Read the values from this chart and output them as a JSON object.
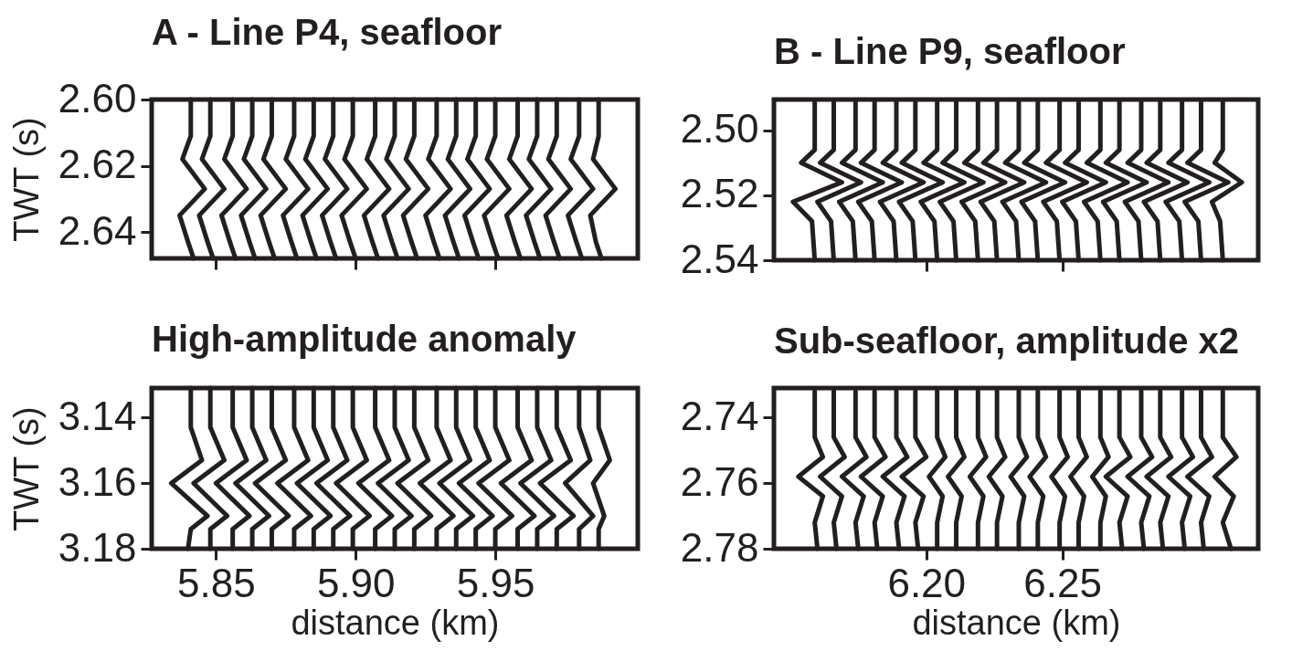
{
  "chart_data": [
    {
      "type": "line",
      "title": "A - Line P4, seafloor",
      "ylabel": "TWT (s)",
      "xlim": [
        5.827,
        6.001
      ],
      "xticks": [
        5.85,
        5.9,
        5.95
      ],
      "ylim": [
        2.648,
        2.6
      ],
      "yticks": [
        {
          "value": 2.6,
          "label": "2.60"
        },
        2.62,
        2.64
      ],
      "tick_labels": "y",
      "series": [
        {
          "color": "#231f20",
          "x": [
            5.841,
            5.841,
            5.838,
            5.846,
            5.837,
            5.84,
            5.842
          ],
          "values": [
            2.6,
            2.611,
            2.618,
            2.627,
            2.635,
            2.643,
            2.648
          ]
        },
        {
          "color": "#231f20",
          "x": [
            5.848,
            5.848,
            5.845,
            5.853,
            5.844,
            5.847,
            5.849
          ],
          "values": [
            2.6,
            2.611,
            2.618,
            2.627,
            2.635,
            2.643,
            2.648
          ]
        },
        {
          "color": "#231f20",
          "x": [
            5.856,
            5.856,
            5.853,
            5.861,
            5.852,
            5.855,
            5.857
          ],
          "values": [
            2.6,
            2.611,
            2.618,
            2.627,
            2.635,
            2.643,
            2.648
          ]
        },
        {
          "color": "#231f20",
          "x": [
            5.863,
            5.863,
            5.86,
            5.868,
            5.859,
            5.862,
            5.864
          ],
          "values": [
            2.6,
            2.611,
            2.618,
            2.627,
            2.635,
            2.643,
            2.648
          ]
        },
        {
          "color": "#231f20",
          "x": [
            5.87,
            5.87,
            5.867,
            5.875,
            5.866,
            5.869,
            5.871
          ],
          "values": [
            2.6,
            2.611,
            2.618,
            2.627,
            2.635,
            2.643,
            2.648
          ]
        },
        {
          "color": "#231f20",
          "x": [
            5.878,
            5.878,
            5.875,
            5.883,
            5.874,
            5.877,
            5.879
          ],
          "values": [
            2.6,
            2.611,
            2.618,
            2.627,
            2.635,
            2.643,
            2.648
          ]
        },
        {
          "color": "#231f20",
          "x": [
            5.885,
            5.885,
            5.882,
            5.89,
            5.881,
            5.884,
            5.886
          ],
          "values": [
            2.6,
            2.611,
            2.618,
            2.627,
            2.635,
            2.643,
            2.648
          ]
        },
        {
          "color": "#231f20",
          "x": [
            5.892,
            5.892,
            5.889,
            5.897,
            5.888,
            5.891,
            5.893
          ],
          "values": [
            2.6,
            2.611,
            2.618,
            2.627,
            2.635,
            2.643,
            2.648
          ]
        },
        {
          "color": "#231f20",
          "x": [
            5.899,
            5.899,
            5.896,
            5.904,
            5.895,
            5.898,
            5.9
          ],
          "values": [
            2.6,
            2.611,
            2.618,
            2.627,
            2.635,
            2.643,
            2.648
          ]
        },
        {
          "color": "#231f20",
          "x": [
            5.907,
            5.907,
            5.904,
            5.912,
            5.903,
            5.906,
            5.908
          ],
          "values": [
            2.6,
            2.611,
            2.618,
            2.627,
            2.635,
            2.643,
            2.648
          ]
        },
        {
          "color": "#231f20",
          "x": [
            5.914,
            5.914,
            5.911,
            5.919,
            5.91,
            5.913,
            5.915
          ],
          "values": [
            2.6,
            2.611,
            2.618,
            2.627,
            2.635,
            2.643,
            2.648
          ]
        },
        {
          "color": "#231f20",
          "x": [
            5.921,
            5.921,
            5.918,
            5.926,
            5.917,
            5.92,
            5.922
          ],
          "values": [
            2.6,
            2.611,
            2.618,
            2.627,
            2.635,
            2.643,
            2.648
          ]
        },
        {
          "color": "#231f20",
          "x": [
            5.929,
            5.929,
            5.926,
            5.934,
            5.925,
            5.928,
            5.93
          ],
          "values": [
            2.6,
            2.611,
            2.618,
            2.627,
            2.635,
            2.643,
            2.648
          ]
        },
        {
          "color": "#231f20",
          "x": [
            5.936,
            5.936,
            5.933,
            5.941,
            5.932,
            5.935,
            5.937
          ],
          "values": [
            2.6,
            2.611,
            2.618,
            2.627,
            2.635,
            2.643,
            2.648
          ]
        },
        {
          "color": "#231f20",
          "x": [
            5.943,
            5.943,
            5.94,
            5.948,
            5.939,
            5.942,
            5.944
          ],
          "values": [
            2.6,
            2.611,
            2.618,
            2.627,
            2.635,
            2.643,
            2.648
          ]
        },
        {
          "color": "#231f20",
          "x": [
            5.95,
            5.95,
            5.947,
            5.955,
            5.946,
            5.949,
            5.951
          ],
          "values": [
            2.6,
            2.611,
            2.618,
            2.627,
            2.635,
            2.643,
            2.648
          ]
        },
        {
          "color": "#231f20",
          "x": [
            5.958,
            5.958,
            5.955,
            5.963,
            5.954,
            5.957,
            5.959
          ],
          "values": [
            2.6,
            2.611,
            2.618,
            2.627,
            2.635,
            2.643,
            2.648
          ]
        },
        {
          "color": "#231f20",
          "x": [
            5.965,
            5.965,
            5.962,
            5.97,
            5.961,
            5.964,
            5.966
          ],
          "values": [
            2.6,
            2.611,
            2.618,
            2.627,
            2.635,
            2.643,
            2.648
          ]
        },
        {
          "color": "#231f20",
          "x": [
            5.972,
            5.972,
            5.969,
            5.977,
            5.968,
            5.971,
            5.973
          ],
          "values": [
            2.6,
            2.611,
            2.618,
            2.627,
            2.635,
            2.643,
            2.648
          ]
        },
        {
          "color": "#231f20",
          "x": [
            5.98,
            5.98,
            5.977,
            5.985,
            5.976,
            5.979,
            5.981
          ],
          "values": [
            2.6,
            2.611,
            2.618,
            2.627,
            2.635,
            2.643,
            2.648
          ]
        },
        {
          "color": "#231f20",
          "x": [
            5.987,
            5.987,
            5.985,
            5.993,
            5.984,
            5.986,
            5.988
          ],
          "values": [
            2.6,
            2.611,
            2.618,
            2.627,
            2.635,
            2.643,
            2.648
          ]
        }
      ]
    },
    {
      "type": "line",
      "title": "B - Line P9, seafloor",
      "xlim": [
        6.144,
        6.322
      ],
      "xticks": [
        6.2,
        6.25
      ],
      "ylim": [
        2.54,
        2.4905
      ],
      "yticks": [
        {
          "value": 2.5,
          "label": "2.50"
        },
        2.52,
        2.54
      ],
      "tick_labels": "y",
      "series": [
        {
          "color": "#231f20",
          "x": [
            6.159,
            6.159,
            6.154,
            6.169,
            6.151,
            6.158,
            6.159
          ],
          "values": [
            2.491,
            2.506,
            2.51,
            2.516,
            2.522,
            2.528,
            2.54
          ]
        },
        {
          "color": "#231f20",
          "x": [
            6.166,
            6.166,
            6.161,
            6.176,
            6.16,
            6.165,
            6.166
          ],
          "values": [
            2.491,
            2.506,
            2.51,
            2.516,
            2.522,
            2.528,
            2.54
          ]
        },
        {
          "color": "#231f20",
          "x": [
            6.174,
            6.174,
            6.169,
            6.184,
            6.168,
            6.173,
            6.174
          ],
          "values": [
            2.491,
            2.506,
            2.51,
            2.516,
            2.522,
            2.528,
            2.54
          ]
        },
        {
          "color": "#231f20",
          "x": [
            6.181,
            6.181,
            6.176,
            6.191,
            6.175,
            6.18,
            6.181
          ],
          "values": [
            2.491,
            2.506,
            2.51,
            2.516,
            2.522,
            2.528,
            2.54
          ]
        },
        {
          "color": "#231f20",
          "x": [
            6.189,
            6.189,
            6.184,
            6.199,
            6.183,
            6.188,
            6.189
          ],
          "values": [
            2.491,
            2.506,
            2.51,
            2.516,
            2.522,
            2.528,
            2.54
          ]
        },
        {
          "color": "#231f20",
          "x": [
            6.196,
            6.196,
            6.191,
            6.206,
            6.19,
            6.195,
            6.196
          ],
          "values": [
            2.491,
            2.506,
            2.51,
            2.516,
            2.522,
            2.528,
            2.54
          ]
        },
        {
          "color": "#231f20",
          "x": [
            6.204,
            6.204,
            6.199,
            6.214,
            6.198,
            6.203,
            6.204
          ],
          "values": [
            2.491,
            2.506,
            2.51,
            2.516,
            2.522,
            2.528,
            2.54
          ]
        },
        {
          "color": "#231f20",
          "x": [
            6.211,
            6.211,
            6.206,
            6.221,
            6.205,
            6.21,
            6.211
          ],
          "values": [
            2.491,
            2.506,
            2.51,
            2.516,
            2.522,
            2.528,
            2.54
          ]
        },
        {
          "color": "#231f20",
          "x": [
            6.219,
            6.219,
            6.214,
            6.229,
            6.213,
            6.218,
            6.219
          ],
          "values": [
            2.491,
            2.506,
            2.51,
            2.516,
            2.522,
            2.528,
            2.54
          ]
        },
        {
          "color": "#231f20",
          "x": [
            6.226,
            6.226,
            6.221,
            6.236,
            6.22,
            6.225,
            6.226
          ],
          "values": [
            2.491,
            2.506,
            2.51,
            2.516,
            2.522,
            2.528,
            2.54
          ]
        },
        {
          "color": "#231f20",
          "x": [
            6.234,
            6.234,
            6.229,
            6.244,
            6.228,
            6.233,
            6.234
          ],
          "values": [
            2.491,
            2.506,
            2.51,
            2.516,
            2.522,
            2.528,
            2.54
          ]
        },
        {
          "color": "#231f20",
          "x": [
            6.241,
            6.241,
            6.236,
            6.251,
            6.235,
            6.24,
            6.241
          ],
          "values": [
            2.491,
            2.506,
            2.51,
            2.516,
            2.522,
            2.528,
            2.54
          ]
        },
        {
          "color": "#231f20",
          "x": [
            6.249,
            6.249,
            6.244,
            6.259,
            6.243,
            6.248,
            6.249
          ],
          "values": [
            2.491,
            2.506,
            2.51,
            2.516,
            2.522,
            2.528,
            2.54
          ]
        },
        {
          "color": "#231f20",
          "x": [
            6.256,
            6.256,
            6.251,
            6.266,
            6.25,
            6.255,
            6.256
          ],
          "values": [
            2.491,
            2.506,
            2.51,
            2.516,
            2.522,
            2.528,
            2.54
          ]
        },
        {
          "color": "#231f20",
          "x": [
            6.264,
            6.264,
            6.259,
            6.274,
            6.258,
            6.263,
            6.264
          ],
          "values": [
            2.491,
            2.506,
            2.51,
            2.516,
            2.522,
            2.528,
            2.54
          ]
        },
        {
          "color": "#231f20",
          "x": [
            6.271,
            6.271,
            6.266,
            6.281,
            6.265,
            6.27,
            6.271
          ],
          "values": [
            2.491,
            2.506,
            2.51,
            2.516,
            2.522,
            2.528,
            2.54
          ]
        },
        {
          "color": "#231f20",
          "x": [
            6.279,
            6.279,
            6.274,
            6.289,
            6.273,
            6.278,
            6.279
          ],
          "values": [
            2.491,
            2.506,
            2.51,
            2.516,
            2.522,
            2.528,
            2.54
          ]
        },
        {
          "color": "#231f20",
          "x": [
            6.286,
            6.286,
            6.281,
            6.296,
            6.28,
            6.285,
            6.286
          ],
          "values": [
            2.491,
            2.506,
            2.51,
            2.516,
            2.522,
            2.528,
            2.54
          ]
        },
        {
          "color": "#231f20",
          "x": [
            6.294,
            6.294,
            6.289,
            6.304,
            6.288,
            6.293,
            6.294
          ],
          "values": [
            2.491,
            2.506,
            2.51,
            2.516,
            2.522,
            2.528,
            2.54
          ]
        },
        {
          "color": "#231f20",
          "x": [
            6.301,
            6.301,
            6.296,
            6.311,
            6.295,
            6.3,
            6.301
          ],
          "values": [
            2.491,
            2.506,
            2.51,
            2.516,
            2.522,
            2.528,
            2.54
          ]
        },
        {
          "color": "#231f20",
          "x": [
            6.309,
            6.309,
            6.306,
            6.316,
            6.305,
            6.308,
            6.309
          ],
          "values": [
            2.491,
            2.506,
            2.51,
            2.516,
            2.522,
            2.528,
            2.54
          ]
        }
      ]
    },
    {
      "type": "line",
      "title": "High-amplitude anomaly",
      "ylabel": "TWT (s)",
      "xlabel": "distance (km)",
      "xlim": [
        5.827,
        6.001
      ],
      "xticks": [
        5.85,
        {
          "value": 5.9,
          "label": "5.90"
        },
        5.95
      ],
      "ylim": [
        3.18,
        3.131
      ],
      "yticks": [
        3.14,
        3.16,
        3.18
      ],
      "series": [
        {
          "color": "#231f20",
          "x": [
            5.841,
            5.841,
            5.845,
            5.834,
            5.847,
            5.841,
            5.84
          ],
          "values": [
            3.131,
            3.143,
            3.153,
            3.16,
            3.17,
            3.174,
            3.18
          ]
        },
        {
          "color": "#231f20",
          "x": [
            5.848,
            5.848,
            5.853,
            5.842,
            5.854,
            5.848,
            5.848
          ],
          "values": [
            3.131,
            3.143,
            3.153,
            3.16,
            3.17,
            3.174,
            3.18
          ]
        },
        {
          "color": "#231f20",
          "x": [
            5.856,
            5.856,
            5.861,
            5.85,
            5.862,
            5.856,
            5.856
          ],
          "values": [
            3.131,
            3.143,
            3.153,
            3.16,
            3.17,
            3.174,
            3.18
          ]
        },
        {
          "color": "#231f20",
          "x": [
            5.863,
            5.863,
            5.868,
            5.857,
            5.869,
            5.863,
            5.863
          ],
          "values": [
            3.131,
            3.143,
            3.153,
            3.16,
            3.17,
            3.174,
            3.18
          ]
        },
        {
          "color": "#231f20",
          "x": [
            5.87,
            5.87,
            5.875,
            5.864,
            5.876,
            5.87,
            5.87
          ],
          "values": [
            3.131,
            3.143,
            3.153,
            3.16,
            3.17,
            3.174,
            3.18
          ]
        },
        {
          "color": "#231f20",
          "x": [
            5.878,
            5.878,
            5.883,
            5.872,
            5.884,
            5.878,
            5.878
          ],
          "values": [
            3.131,
            3.143,
            3.153,
            3.16,
            3.17,
            3.174,
            3.18
          ]
        },
        {
          "color": "#231f20",
          "x": [
            5.885,
            5.885,
            5.89,
            5.879,
            5.891,
            5.885,
            5.885
          ],
          "values": [
            3.131,
            3.143,
            3.153,
            3.16,
            3.17,
            3.174,
            3.18
          ]
        },
        {
          "color": "#231f20",
          "x": [
            5.892,
            5.892,
            5.897,
            5.886,
            5.898,
            5.892,
            5.892
          ],
          "values": [
            3.131,
            3.143,
            3.153,
            3.16,
            3.17,
            3.174,
            3.18
          ]
        },
        {
          "color": "#231f20",
          "x": [
            5.899,
            5.899,
            5.904,
            5.893,
            5.905,
            5.899,
            5.899
          ],
          "values": [
            3.131,
            3.143,
            3.153,
            3.16,
            3.17,
            3.174,
            3.18
          ]
        },
        {
          "color": "#231f20",
          "x": [
            5.907,
            5.907,
            5.912,
            5.901,
            5.913,
            5.907,
            5.907
          ],
          "values": [
            3.131,
            3.143,
            3.153,
            3.16,
            3.17,
            3.174,
            3.18
          ]
        },
        {
          "color": "#231f20",
          "x": [
            5.914,
            5.914,
            5.919,
            5.908,
            5.92,
            5.914,
            5.914
          ],
          "values": [
            3.131,
            3.143,
            3.153,
            3.16,
            3.17,
            3.174,
            3.18
          ]
        },
        {
          "color": "#231f20",
          "x": [
            5.921,
            5.921,
            5.926,
            5.915,
            5.927,
            5.921,
            5.921
          ],
          "values": [
            3.131,
            3.143,
            3.153,
            3.16,
            3.17,
            3.174,
            3.18
          ]
        },
        {
          "color": "#231f20",
          "x": [
            5.929,
            5.929,
            5.934,
            5.923,
            5.935,
            5.929,
            5.929
          ],
          "values": [
            3.131,
            3.143,
            3.153,
            3.16,
            3.17,
            3.174,
            3.18
          ]
        },
        {
          "color": "#231f20",
          "x": [
            5.936,
            5.936,
            5.941,
            5.93,
            5.942,
            5.936,
            5.936
          ],
          "values": [
            3.131,
            3.143,
            3.153,
            3.16,
            3.17,
            3.174,
            3.18
          ]
        },
        {
          "color": "#231f20",
          "x": [
            5.943,
            5.943,
            5.948,
            5.937,
            5.949,
            5.943,
            5.943
          ],
          "values": [
            3.131,
            3.143,
            3.153,
            3.16,
            3.17,
            3.174,
            3.18
          ]
        },
        {
          "color": "#231f20",
          "x": [
            5.95,
            5.95,
            5.955,
            5.944,
            5.956,
            5.95,
            5.95
          ],
          "values": [
            3.131,
            3.143,
            3.153,
            3.16,
            3.17,
            3.174,
            3.18
          ]
        },
        {
          "color": "#231f20",
          "x": [
            5.958,
            5.958,
            5.963,
            5.952,
            5.964,
            5.958,
            5.958
          ],
          "values": [
            3.131,
            3.143,
            3.153,
            3.16,
            3.17,
            3.174,
            3.18
          ]
        },
        {
          "color": "#231f20",
          "x": [
            5.965,
            5.965,
            5.97,
            5.959,
            5.971,
            5.965,
            5.965
          ],
          "values": [
            3.131,
            3.143,
            3.153,
            3.16,
            3.17,
            3.174,
            3.18
          ]
        },
        {
          "color": "#231f20",
          "x": [
            5.972,
            5.972,
            5.977,
            5.966,
            5.978,
            5.972,
            5.972
          ],
          "values": [
            3.131,
            3.143,
            3.153,
            3.16,
            3.17,
            3.174,
            3.18
          ]
        },
        {
          "color": "#231f20",
          "x": [
            5.98,
            5.98,
            5.984,
            5.975,
            5.985,
            5.98,
            5.98
          ],
          "values": [
            3.131,
            3.143,
            3.153,
            3.16,
            3.17,
            3.174,
            3.18
          ]
        },
        {
          "color": "#231f20",
          "x": [
            5.987,
            5.987,
            5.991,
            5.985,
            5.989,
            5.987,
            5.987
          ],
          "values": [
            3.131,
            3.143,
            3.153,
            3.16,
            3.17,
            3.174,
            3.18
          ]
        }
      ]
    },
    {
      "type": "line",
      "title": "Sub-seafloor, amplitude x2",
      "xlabel": "distance (km)",
      "xlim": [
        6.144,
        6.322
      ],
      "xticks": [
        {
          "value": 6.2,
          "label": "6.20"
        },
        6.25
      ],
      "ylim": [
        2.78,
        2.731
      ],
      "yticks": [
        2.74,
        2.76,
        2.78
      ],
      "series": [
        {
          "color": "#231f20",
          "x": [
            6.159,
            6.159,
            6.162,
            6.153,
            6.162,
            6.159,
            6.16
          ],
          "values": [
            2.732,
            2.746,
            2.752,
            2.758,
            2.764,
            2.772,
            2.78
          ]
        },
        {
          "color": "#231f20",
          "x": [
            6.166,
            6.166,
            6.17,
            6.161,
            6.169,
            6.166,
            6.167
          ],
          "values": [
            2.732,
            2.746,
            2.752,
            2.758,
            2.764,
            2.772,
            2.78
          ]
        },
        {
          "color": "#231f20",
          "x": [
            6.174,
            6.174,
            6.178,
            6.169,
            6.177,
            6.174,
            6.175
          ],
          "values": [
            2.732,
            2.746,
            2.752,
            2.758,
            2.764,
            2.772,
            2.78
          ]
        },
        {
          "color": "#231f20",
          "x": [
            6.181,
            6.181,
            6.185,
            6.176,
            6.184,
            6.181,
            6.182
          ],
          "values": [
            2.732,
            2.746,
            2.752,
            2.758,
            2.764,
            2.772,
            2.78
          ]
        },
        {
          "color": "#231f20",
          "x": [
            6.189,
            6.189,
            6.193,
            6.184,
            6.192,
            6.189,
            6.19
          ],
          "values": [
            2.732,
            2.746,
            2.752,
            2.758,
            2.764,
            2.772,
            2.78
          ]
        },
        {
          "color": "#231f20",
          "x": [
            6.196,
            6.196,
            6.2,
            6.191,
            6.199,
            6.196,
            6.197
          ],
          "values": [
            2.732,
            2.746,
            2.752,
            2.758,
            2.764,
            2.772,
            2.78
          ]
        },
        {
          "color": "#231f20",
          "x": [
            6.204,
            6.204,
            6.207,
            6.201,
            6.206,
            6.204,
            6.204
          ],
          "values": [
            2.732,
            2.746,
            2.752,
            2.758,
            2.764,
            2.772,
            2.78
          ]
        },
        {
          "color": "#231f20",
          "x": [
            6.211,
            6.211,
            6.214,
            6.208,
            6.213,
            6.211,
            6.211
          ],
          "values": [
            2.732,
            2.746,
            2.752,
            2.758,
            2.764,
            2.772,
            2.78
          ]
        },
        {
          "color": "#231f20",
          "x": [
            6.219,
            6.219,
            6.222,
            6.216,
            6.221,
            6.219,
            6.219
          ],
          "values": [
            2.732,
            2.746,
            2.752,
            2.758,
            2.764,
            2.772,
            2.78
          ]
        },
        {
          "color": "#231f20",
          "x": [
            6.226,
            6.226,
            6.229,
            6.223,
            6.228,
            6.226,
            6.226
          ],
          "values": [
            2.732,
            2.746,
            2.752,
            2.758,
            2.764,
            2.772,
            2.78
          ]
        },
        {
          "color": "#231f20",
          "x": [
            6.234,
            6.234,
            6.237,
            6.231,
            6.236,
            6.234,
            6.234
          ],
          "values": [
            2.732,
            2.746,
            2.752,
            2.758,
            2.764,
            2.772,
            2.78
          ]
        },
        {
          "color": "#231f20",
          "x": [
            6.241,
            6.241,
            6.244,
            6.238,
            6.243,
            6.241,
            6.241
          ],
          "values": [
            2.732,
            2.746,
            2.752,
            2.758,
            2.764,
            2.772,
            2.78
          ]
        },
        {
          "color": "#231f20",
          "x": [
            6.249,
            6.249,
            6.252,
            6.246,
            6.251,
            6.249,
            6.249
          ],
          "values": [
            2.732,
            2.746,
            2.752,
            2.758,
            2.764,
            2.772,
            2.78
          ]
        },
        {
          "color": "#231f20",
          "x": [
            6.256,
            6.256,
            6.259,
            6.253,
            6.258,
            6.256,
            6.256
          ],
          "values": [
            2.732,
            2.746,
            2.752,
            2.758,
            2.764,
            2.772,
            2.78
          ]
        },
        {
          "color": "#231f20",
          "x": [
            6.264,
            6.264,
            6.267,
            6.261,
            6.266,
            6.264,
            6.264
          ],
          "values": [
            2.732,
            2.746,
            2.752,
            2.758,
            2.764,
            2.772,
            2.78
          ]
        },
        {
          "color": "#231f20",
          "x": [
            6.271,
            6.271,
            6.275,
            6.266,
            6.274,
            6.271,
            6.272
          ],
          "values": [
            2.732,
            2.746,
            2.752,
            2.758,
            2.764,
            2.772,
            2.78
          ]
        },
        {
          "color": "#231f20",
          "x": [
            6.279,
            6.279,
            6.283,
            6.274,
            6.282,
            6.279,
            6.28
          ],
          "values": [
            2.732,
            2.746,
            2.752,
            2.758,
            2.764,
            2.772,
            2.78
          ]
        },
        {
          "color": "#231f20",
          "x": [
            6.286,
            6.286,
            6.29,
            6.281,
            6.289,
            6.286,
            6.287
          ],
          "values": [
            2.732,
            2.746,
            2.752,
            2.758,
            2.764,
            2.772,
            2.78
          ]
        },
        {
          "color": "#231f20",
          "x": [
            6.294,
            6.294,
            6.298,
            6.289,
            6.297,
            6.294,
            6.295
          ],
          "values": [
            2.732,
            2.746,
            2.752,
            2.758,
            2.764,
            2.772,
            2.78
          ]
        },
        {
          "color": "#231f20",
          "x": [
            6.301,
            6.301,
            6.305,
            6.296,
            6.304,
            6.301,
            6.302
          ],
          "values": [
            2.732,
            2.746,
            2.752,
            2.758,
            2.764,
            2.772,
            2.78
          ]
        },
        {
          "color": "#231f20",
          "x": [
            6.309,
            6.309,
            6.314,
            6.306,
            6.313,
            6.309,
            6.312
          ],
          "values": [
            2.732,
            2.746,
            2.752,
            2.758,
            2.764,
            2.772,
            2.78
          ]
        }
      ]
    }
  ]
}
